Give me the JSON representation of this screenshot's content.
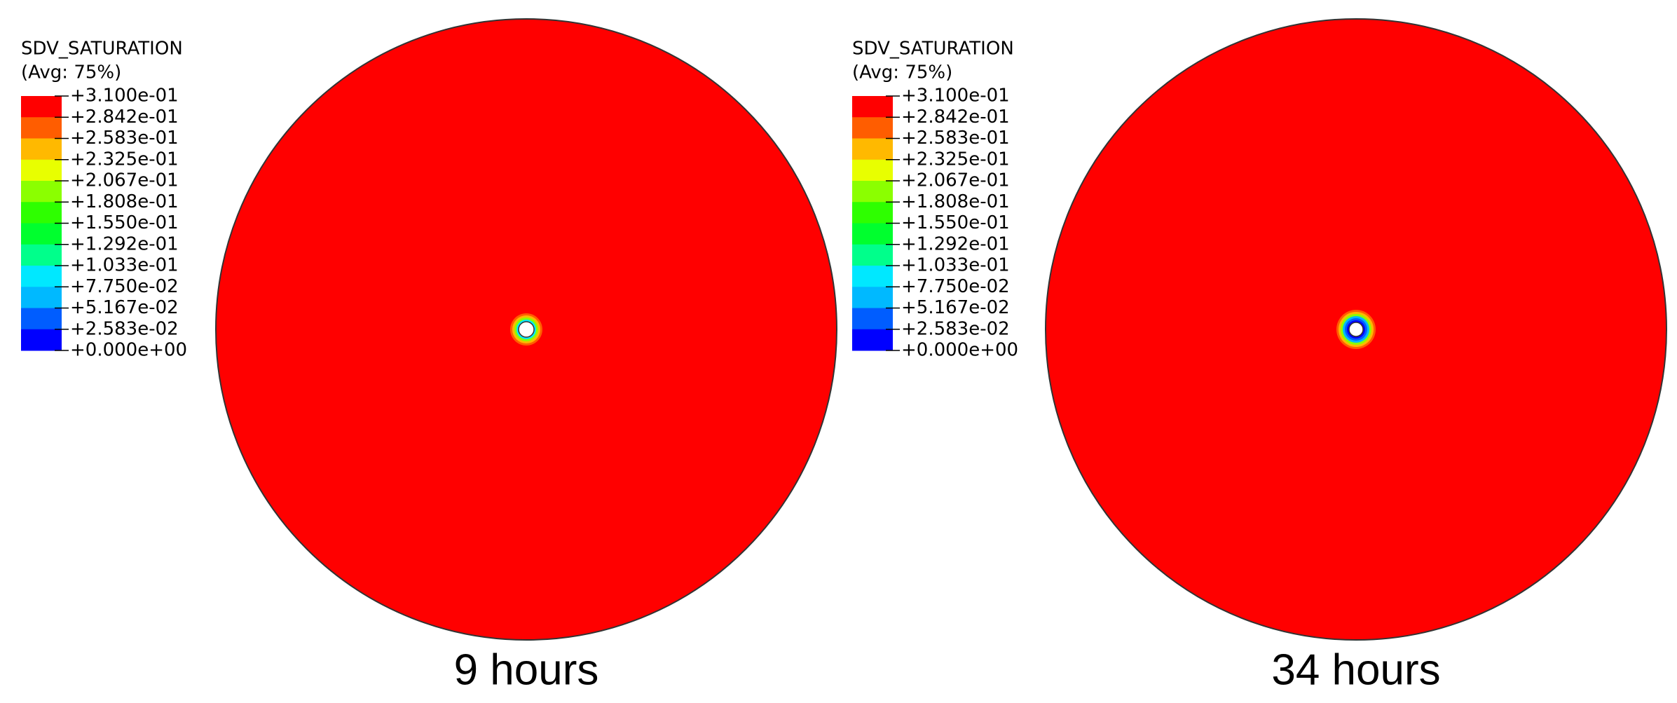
{
  "panels": [
    {
      "legend": {
        "title": "SDV_SATURATION",
        "subtitle": "(Avg: 75%)",
        "labels": [
          "+3.100e-01",
          "+2.842e-01",
          "+2.583e-01",
          "+2.325e-01",
          "+2.067e-01",
          "+1.808e-01",
          "+1.550e-01",
          "+1.292e-01",
          "+1.033e-01",
          "+7.750e-02",
          "+5.167e-02",
          "+2.583e-02",
          "+0.000e+00"
        ]
      },
      "caption": "9 hours"
    },
    {
      "legend": {
        "title": "SDV_SATURATION",
        "subtitle": "(Avg: 75%)",
        "labels": [
          "+3.100e-01",
          "+2.842e-01",
          "+2.583e-01",
          "+2.325e-01",
          "+2.067e-01",
          "+1.808e-01",
          "+1.550e-01",
          "+1.292e-01",
          "+1.033e-01",
          "+7.750e-02",
          "+5.167e-02",
          "+2.583e-02",
          "+0.000e+00"
        ]
      },
      "caption": "34 hours"
    }
  ]
}
